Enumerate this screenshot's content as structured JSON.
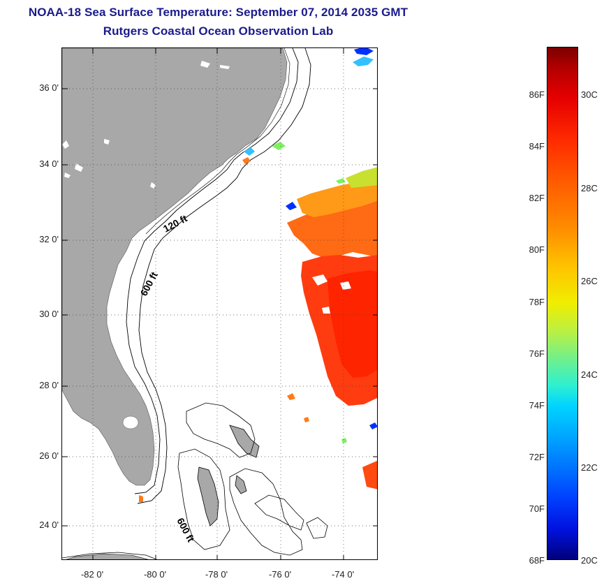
{
  "header": {
    "title": "NOAA-18 Sea Surface Temperature:  September 07, 2014 2035 GMT",
    "subtitle": "Rutgers Coastal Ocean Observation Lab"
  },
  "map": {
    "lat_labels": [
      "36 0'",
      "34 0'",
      "32 0'",
      "30 0'",
      "28 0'",
      "26 0'",
      "24 0'"
    ],
    "lon_labels": [
      "-82 0'",
      "-80 0'",
      "-78 0'",
      "-76 0'",
      "-74 0'"
    ],
    "contour_labels": [
      "120 ft",
      "600 ft",
      "600 ft"
    ],
    "colors": {
      "land": "#a8a8a8",
      "ocean_no_data": "#ffffff"
    }
  },
  "colorbar": {
    "fahrenheit_labels": [
      "86F",
      "84F",
      "82F",
      "80F",
      "78F",
      "76F",
      "74F",
      "72F",
      "70F",
      "68F"
    ],
    "celsius_labels": [
      "30C",
      "28C",
      "26C",
      "24C",
      "22C",
      "20C"
    ]
  }
}
